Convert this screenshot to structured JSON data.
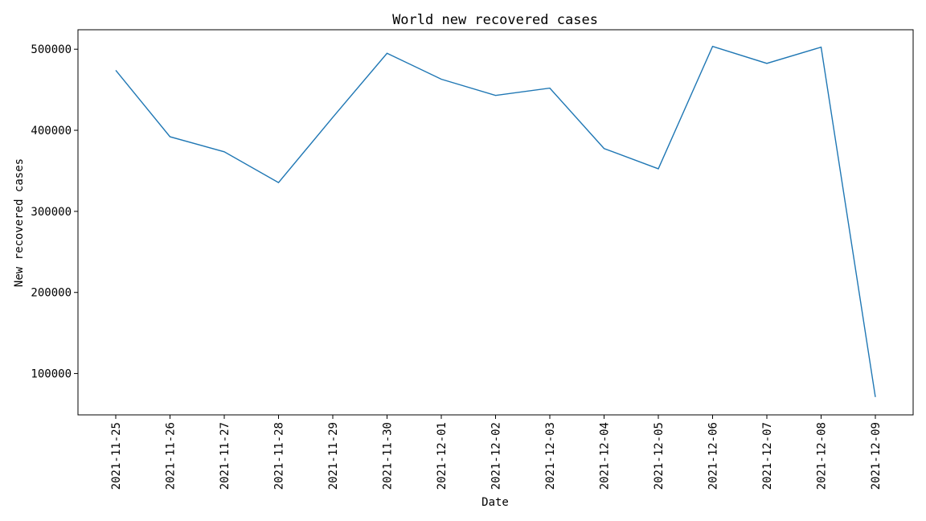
{
  "chart_data": {
    "type": "line",
    "title": "World new recovered cases",
    "xlabel": "Date",
    "ylabel": "New recovered cases",
    "x": [
      "2021-11-25",
      "2021-11-26",
      "2021-11-27",
      "2021-11-28",
      "2021-11-29",
      "2021-11-30",
      "2021-12-01",
      "2021-12-02",
      "2021-12-03",
      "2021-12-04",
      "2021-12-05",
      "2021-12-06",
      "2021-12-07",
      "2021-12-08",
      "2021-12-09"
    ],
    "series": [
      {
        "values": [
          474000,
          392000,
          373500,
          335500,
          416000,
          495000,
          463000,
          443000,
          452000,
          377500,
          352500,
          503500,
          482500,
          502500,
          71000
        ]
      }
    ],
    "yticks": [
      100000,
      200000,
      300000,
      400000,
      500000
    ],
    "ylim": [
      49000,
      524000
    ],
    "grid": false,
    "legend": "none",
    "line_color": "#1f77b4"
  }
}
